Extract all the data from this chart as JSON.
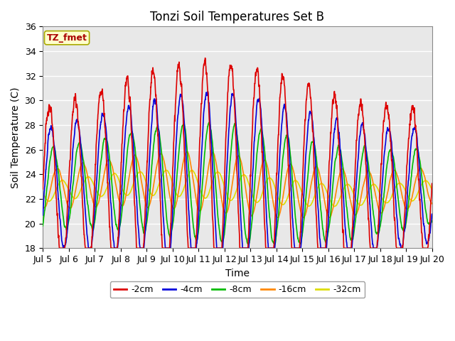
{
  "title": "Tonzi Soil Temperatures Set B",
  "xlabel": "Time",
  "ylabel": "Soil Temperature (C)",
  "ylim": [
    18,
    36
  ],
  "xlim": [
    0,
    15
  ],
  "xtick_labels": [
    "Jul 5",
    "Jul 6",
    "Jul 7",
    "Jul 8",
    "Jul 9",
    "Jul 10",
    "Jul 11",
    "Jul 12",
    "Jul 13",
    "Jul 14",
    "Jul 15",
    "Jul 16",
    "Jul 17",
    "Jul 18",
    "Jul 19",
    "Jul 20"
  ],
  "ytick_values": [
    18,
    20,
    22,
    24,
    26,
    28,
    30,
    32,
    34,
    36
  ],
  "series_colors": [
    "#dd0000",
    "#0000dd",
    "#00bb00",
    "#ff8800",
    "#dddd00"
  ],
  "series_labels": [
    "-2cm",
    "-4cm",
    "-8cm",
    "-16cm",
    "-32cm"
  ],
  "legend_label": "TZ_fmet",
  "legend_bg": "#ffffcc",
  "legend_border": "#aaaa00",
  "fig_bg": "#ffffff",
  "plot_bg": "#e8e8e8",
  "grid_color": "#ffffff",
  "title_fontsize": 12,
  "axis_fontsize": 10,
  "tick_fontsize": 9,
  "line_width": 1.2
}
